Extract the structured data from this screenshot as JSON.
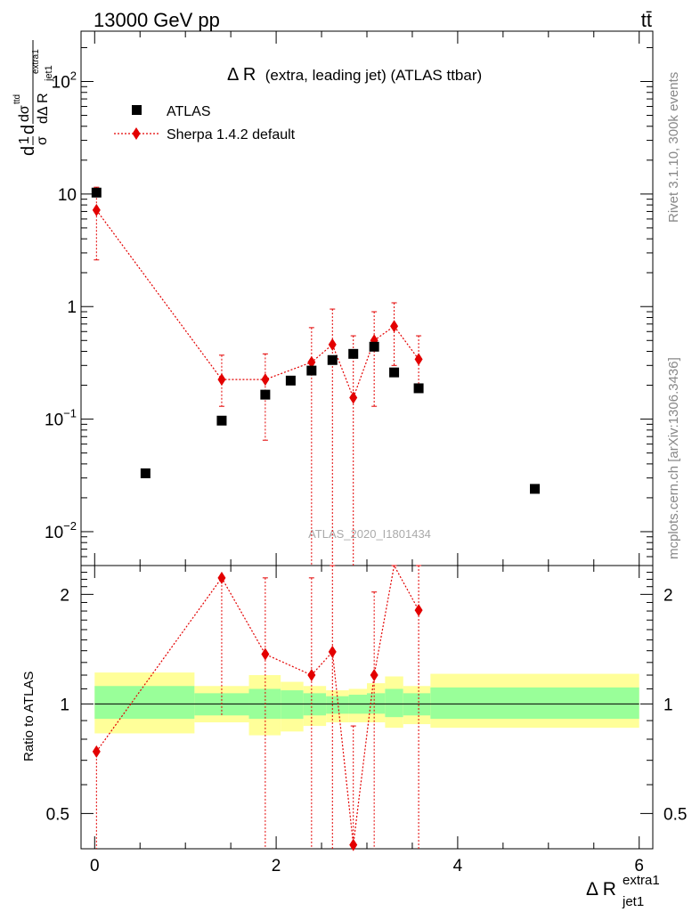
{
  "header": {
    "left": "13000 GeV pp",
    "right": "tt̄"
  },
  "main_title": {
    "symbol": "Δ R",
    "rest": "(extra, leading jet) (ATLAS ttbar)"
  },
  "side_labels": {
    "rivet": "Rivet 3.1.10,  300k events",
    "mcplots": "mcplots.cern.ch [arXiv:1306.3436]"
  },
  "watermark": "ATLAS_2020_I1801434",
  "ylabel_top": {
    "dd": "d",
    "one": "1",
    "sigma": "σ",
    "d": "d",
    "dsigma": "dσ",
    "tt": "ttd",
    "denom": "dΔ R",
    "sub": "jet1",
    "sup": "extra1"
  },
  "ylabel_ratio": "Ratio to ATLAS",
  "xlabel": {
    "main": "Δ R",
    "sub": "jet1",
    "sup": "extra1"
  },
  "colors": {
    "data": "#000000",
    "mc": "#e30000",
    "band_inner": "#99ff99",
    "band_outer": "#ffff99"
  },
  "chart_data": [
    {
      "type": "scatter",
      "panel": "main",
      "yscale": "log",
      "xlim": [
        -0.15,
        6.15
      ],
      "ylim": [
        0.005,
        280
      ],
      "ytick_labels": [
        {
          "base": "10",
          "exp": "−2"
        },
        {
          "base": "10",
          "exp": "−1"
        },
        {
          "base": "1",
          "exp": ""
        },
        {
          "base": "10",
          "exp": ""
        },
        {
          "base": "10",
          "exp": "2"
        }
      ],
      "legend": {
        "position": "top-left"
      },
      "series": [
        {
          "name": "ATLAS",
          "marker": "square",
          "x": [
            0.02,
            0.56,
            1.4,
            1.88,
            2.16,
            2.39,
            2.62,
            2.85,
            3.08,
            3.3,
            3.57,
            4.85
          ],
          "y": [
            10.3,
            0.033,
            0.097,
            0.165,
            0.22,
            0.27,
            0.335,
            0.38,
            0.44,
            0.26,
            0.188,
            0.024
          ]
        },
        {
          "name": "Sherpa 1.4.2 default",
          "marker": "diamond",
          "x": [
            0.02,
            1.4,
            1.88,
            2.39,
            2.62,
            2.85,
            3.08,
            3.3,
            3.57
          ],
          "y": [
            7.2,
            0.225,
            0.225,
            0.32,
            0.46,
            0.155,
            0.5,
            0.67,
            0.34
          ],
          "yerr_low": [
            2.6,
            0.13,
            0.065,
            0.0,
            0.0,
            0.0,
            0.13,
            0.3,
            0.19
          ],
          "yerr_high": [
            11.5,
            0.37,
            0.38,
            0.65,
            0.95,
            0.55,
            0.9,
            1.08,
            0.55
          ]
        }
      ]
    },
    {
      "type": "scatter",
      "panel": "ratio",
      "yscale": "log",
      "xlim": [
        -0.15,
        6.15
      ],
      "ylim": [
        0.4,
        2.4
      ],
      "xticks": [
        0,
        2,
        4,
        6
      ],
      "yticks": [
        0.5,
        1,
        2
      ],
      "bands": [
        {
          "x0": 0.0,
          "x1": 1.1,
          "inner": [
            0.91,
            1.12
          ],
          "outer": [
            0.83,
            1.22
          ]
        },
        {
          "x0": 1.1,
          "x1": 1.7,
          "inner": [
            0.93,
            1.07
          ],
          "outer": [
            0.89,
            1.12
          ]
        },
        {
          "x0": 1.7,
          "x1": 2.05,
          "inner": [
            0.91,
            1.1
          ],
          "outer": [
            0.82,
            1.2
          ]
        },
        {
          "x0": 2.05,
          "x1": 2.3,
          "inner": [
            0.91,
            1.09
          ],
          "outer": [
            0.84,
            1.15
          ]
        },
        {
          "x0": 2.3,
          "x1": 2.55,
          "inner": [
            0.93,
            1.07
          ],
          "outer": [
            0.87,
            1.12
          ]
        },
        {
          "x0": 2.55,
          "x1": 2.8,
          "inner": [
            0.94,
            1.05
          ],
          "outer": [
            0.89,
            1.09
          ]
        },
        {
          "x0": 2.8,
          "x1": 3.0,
          "inner": [
            0.94,
            1.06
          ],
          "outer": [
            0.89,
            1.1
          ]
        },
        {
          "x0": 3.0,
          "x1": 3.2,
          "inner": [
            0.94,
            1.07
          ],
          "outer": [
            0.89,
            1.14
          ]
        },
        {
          "x0": 3.2,
          "x1": 3.4,
          "inner": [
            0.92,
            1.1
          ],
          "outer": [
            0.86,
            1.19
          ]
        },
        {
          "x0": 3.4,
          "x1": 3.7,
          "inner": [
            0.93,
            1.07
          ],
          "outer": [
            0.88,
            1.12
          ]
        },
        {
          "x0": 3.7,
          "x1": 6.0,
          "inner": [
            0.91,
            1.11
          ],
          "outer": [
            0.86,
            1.21
          ]
        }
      ],
      "series": [
        {
          "name": "Sherpa 1.4.2 default",
          "marker": "diamond",
          "x": [
            0.02,
            1.4,
            1.88,
            2.39,
            2.62,
            2.85,
            3.08,
            3.3,
            3.57
          ],
          "y": [
            0.74,
            2.22,
            1.37,
            1.2,
            1.39,
            0.41,
            1.2,
            2.6,
            1.81
          ],
          "yerr_low": [
            0.3,
            0.93,
            0.3,
            0.3,
            0.3,
            0.3,
            0.3,
            2.6,
            0.3
          ],
          "yerr_high": [
            0.74,
            2.22,
            2.22,
            2.22,
            2.6,
            0.87,
            2.03,
            2.6,
            2.6
          ]
        }
      ]
    }
  ]
}
